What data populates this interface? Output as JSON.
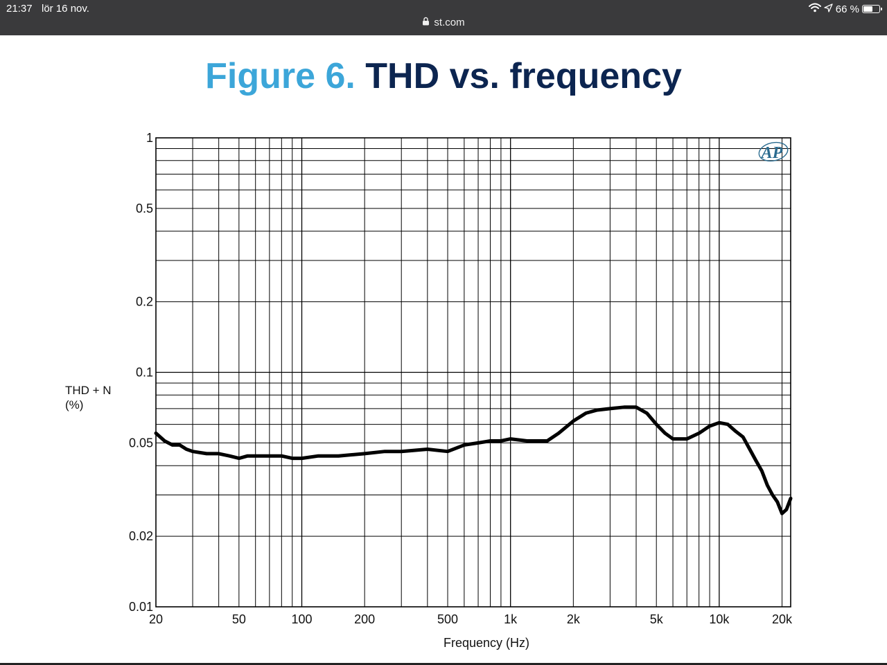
{
  "status_bar": {
    "time": "21:37",
    "date": "lör 16 nov.",
    "battery": "66 %",
    "battery_level": 0.66,
    "icons": [
      "wifi-icon",
      "location-arrow-icon",
      "battery-icon"
    ]
  },
  "browser": {
    "url": "st.com",
    "icons": [
      "lock-icon"
    ]
  },
  "figure": {
    "label": "Figure 6.",
    "title": "THD vs. frequency",
    "label_color": "#3ca6d9",
    "title_color": "#0c2550"
  },
  "chart_data": {
    "type": "line",
    "xlabel": "Frequency (Hz)",
    "ylabel_line1": "THD + N",
    "ylabel_line2": "(%)",
    "xscale": "log",
    "yscale": "log",
    "xlim": [
      20,
      22000
    ],
    "ylim": [
      0.01,
      1
    ],
    "grid": true,
    "logo": "AP",
    "x_ticks": [
      {
        "value": 20,
        "label": "20"
      },
      {
        "value": 50,
        "label": "50"
      },
      {
        "value": 100,
        "label": "100"
      },
      {
        "value": 200,
        "label": "200"
      },
      {
        "value": 500,
        "label": "500"
      },
      {
        "value": 1000,
        "label": "1k"
      },
      {
        "value": 2000,
        "label": "2k"
      },
      {
        "value": 5000,
        "label": "5k"
      },
      {
        "value": 10000,
        "label": "10k"
      },
      {
        "value": 20000,
        "label": "20k"
      }
    ],
    "y_ticks": [
      {
        "value": 0.01,
        "label": "0.01"
      },
      {
        "value": 0.02,
        "label": "0.02"
      },
      {
        "value": 0.05,
        "label": "0.05"
      },
      {
        "value": 0.1,
        "label": "0.1"
      },
      {
        "value": 0.2,
        "label": "0.2"
      },
      {
        "value": 0.5,
        "label": "0.5"
      },
      {
        "value": 1,
        "label": "1"
      }
    ],
    "series": [
      {
        "color": "#000000",
        "x": [
          20,
          22,
          24,
          26,
          28,
          30,
          35,
          40,
          45,
          50,
          55,
          60,
          70,
          80,
          90,
          100,
          120,
          150,
          200,
          250,
          300,
          400,
          500,
          600,
          700,
          800,
          900,
          1000,
          1200,
          1500,
          1700,
          2000,
          2300,
          2600,
          3000,
          3500,
          4000,
          4500,
          5000,
          5500,
          6000,
          7000,
          8000,
          9000,
          10000,
          11000,
          12000,
          13000,
          14000,
          15000,
          16000,
          17000,
          18000,
          19000,
          20000,
          21000,
          22000
        ],
        "y": [
          0.055,
          0.051,
          0.049,
          0.049,
          0.047,
          0.046,
          0.045,
          0.045,
          0.044,
          0.043,
          0.044,
          0.044,
          0.044,
          0.044,
          0.043,
          0.043,
          0.044,
          0.044,
          0.045,
          0.046,
          0.046,
          0.047,
          0.046,
          0.049,
          0.05,
          0.051,
          0.051,
          0.052,
          0.051,
          0.051,
          0.055,
          0.062,
          0.067,
          0.069,
          0.07,
          0.071,
          0.071,
          0.067,
          0.06,
          0.055,
          0.052,
          0.052,
          0.055,
          0.059,
          0.061,
          0.06,
          0.056,
          0.053,
          0.047,
          0.042,
          0.038,
          0.033,
          0.03,
          0.028,
          0.025,
          0.026,
          0.029
        ]
      }
    ]
  }
}
